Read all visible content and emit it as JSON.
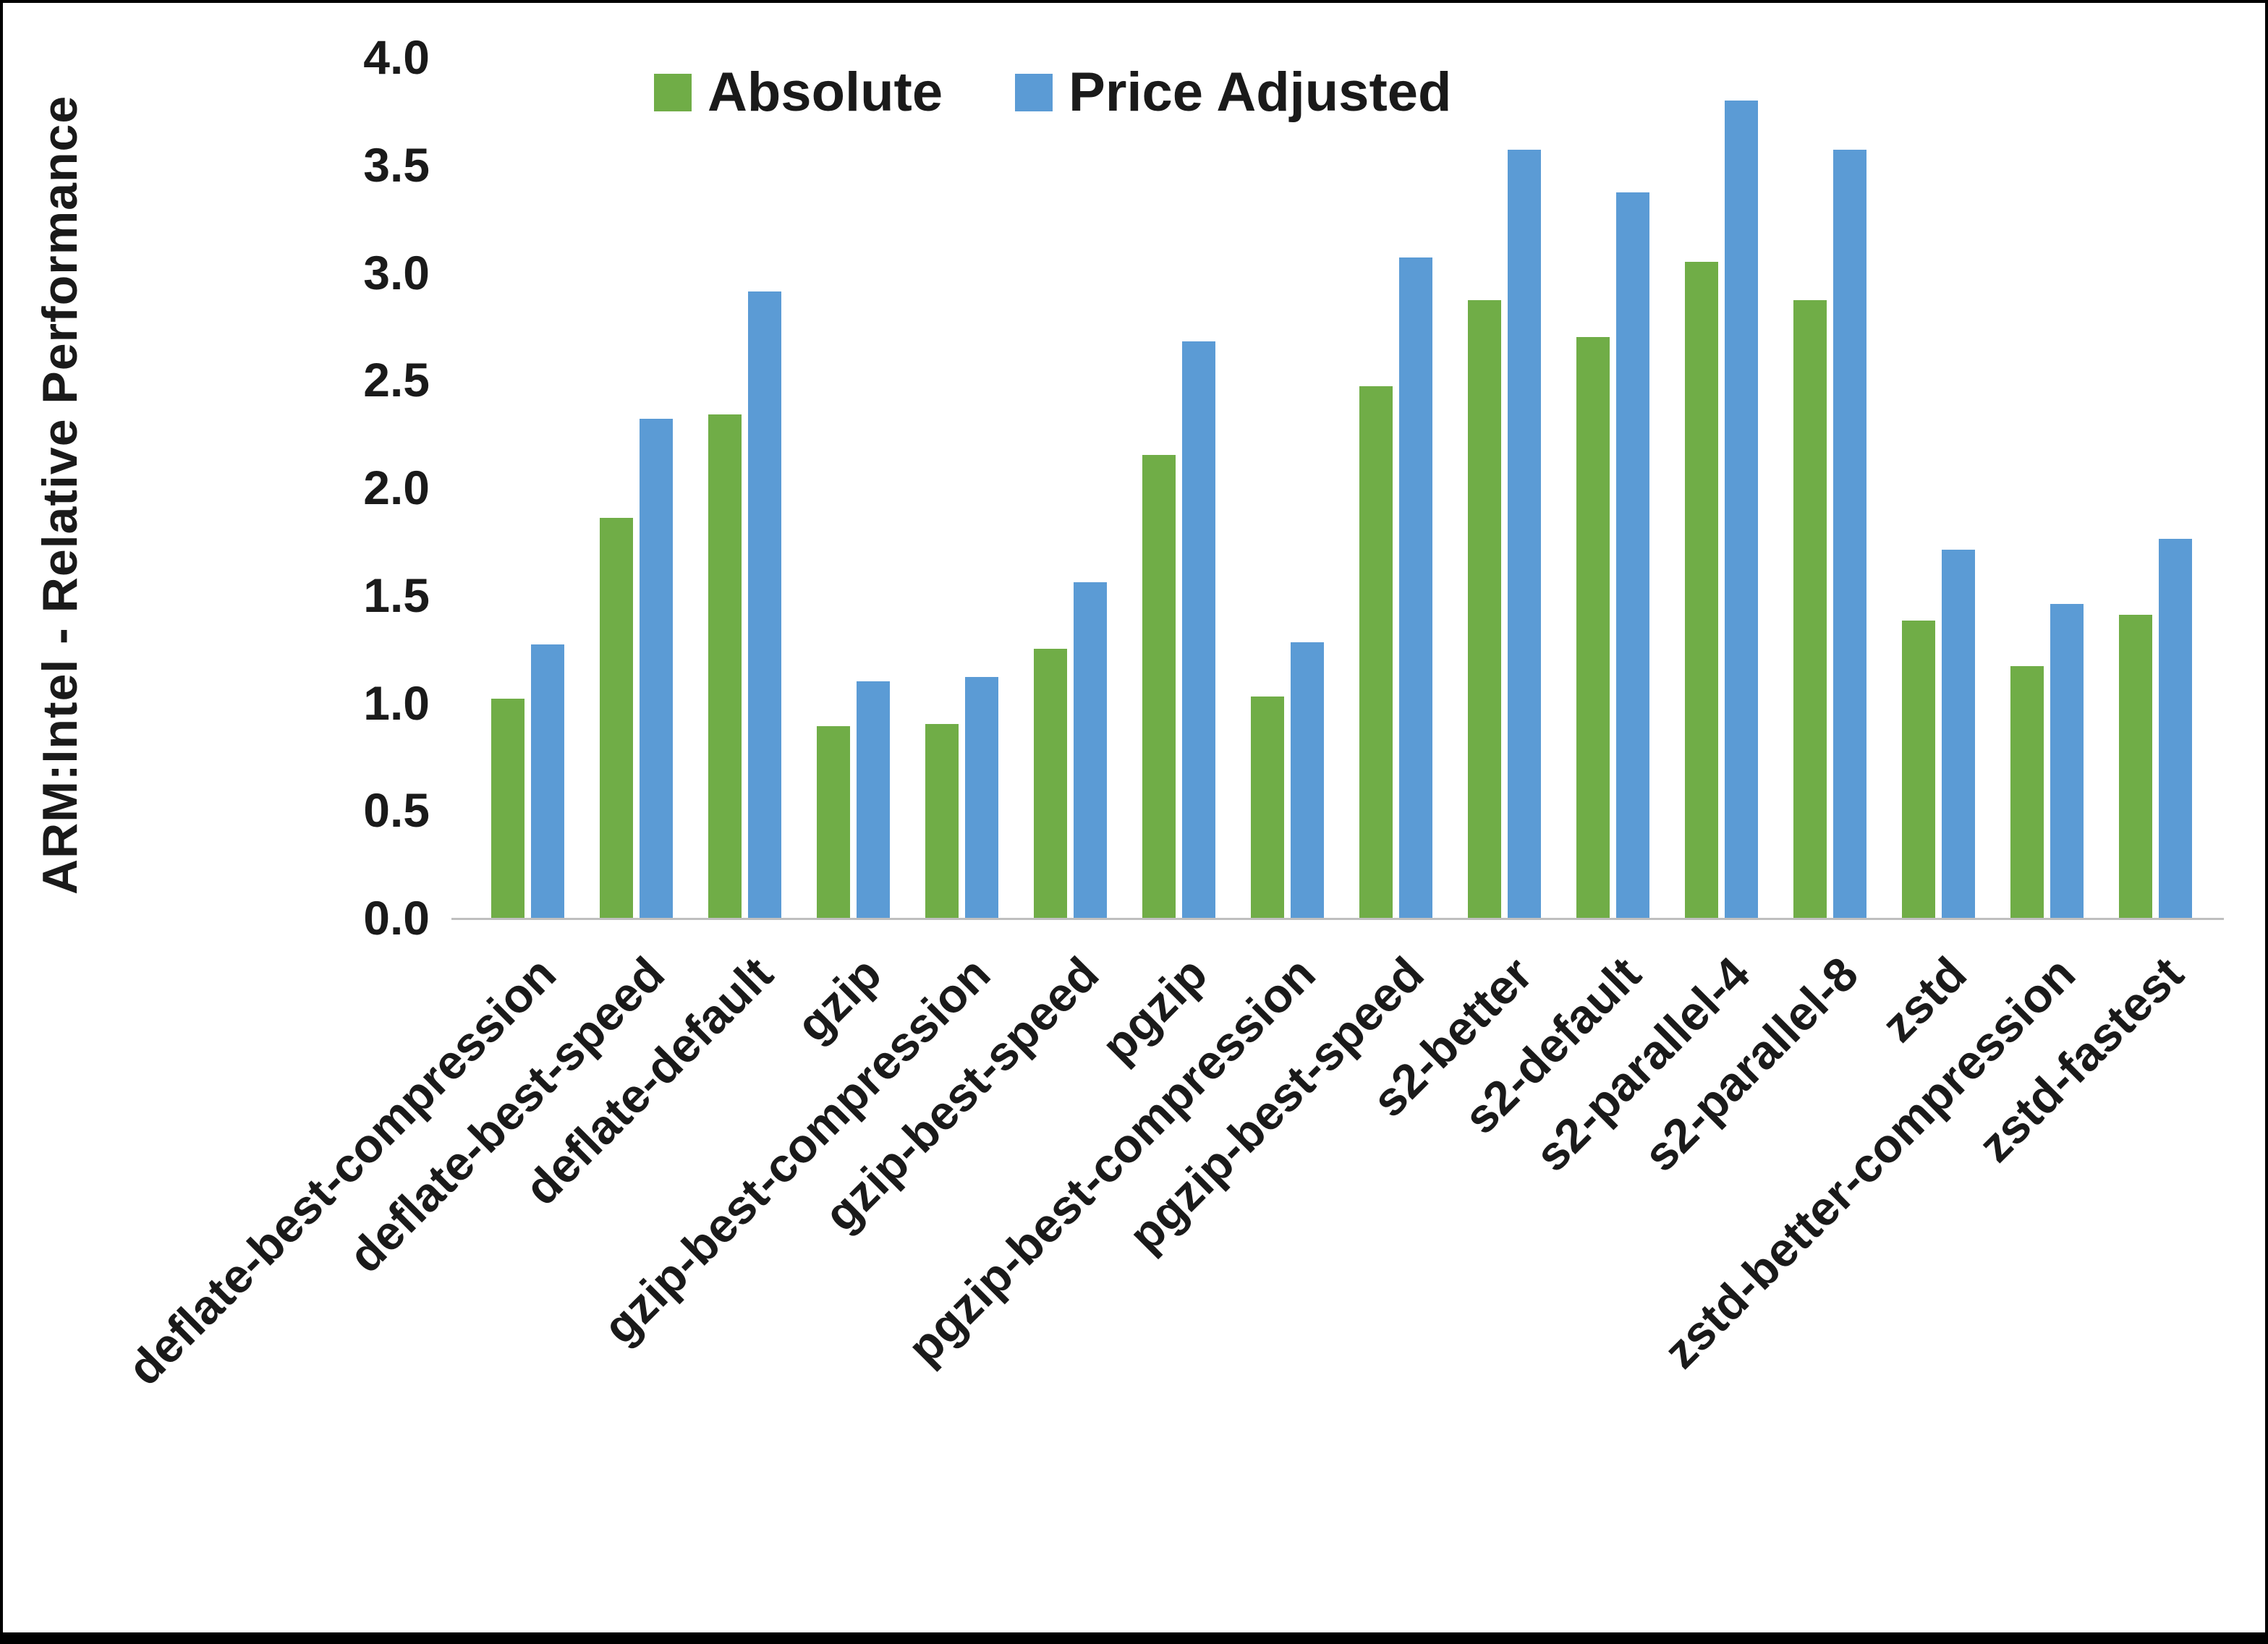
{
  "chart_data": {
    "type": "bar",
    "title": "",
    "xlabel": "",
    "ylabel": "ARM:Intel - Relative Performance",
    "ylim": [
      0,
      4.0
    ],
    "ytick_step": 0.5,
    "yticks": [
      "0.0",
      "0.5",
      "1.0",
      "1.5",
      "2.0",
      "2.5",
      "3.0",
      "3.5",
      "4.0"
    ],
    "grid": false,
    "legend_position": "top-center",
    "categories": [
      "deflate-best-compression",
      "deflate-best-speed",
      "deflate-default",
      "gzip",
      "gzip-best-compression",
      "gzip-best-speed",
      "pgzip",
      "pgzip-best-compression",
      "pgzip-best-speed",
      "s2-better",
      "s2-default",
      "s2-parallel-4",
      "s2-parallel-8",
      "zstd",
      "zstd-better-compression",
      "zstd-fastest"
    ],
    "series": [
      {
        "name": "Absolute",
        "color": "#70AD47",
        "values": [
          1.02,
          1.86,
          2.34,
          0.89,
          0.9,
          1.25,
          2.15,
          1.03,
          2.47,
          2.87,
          2.7,
          3.05,
          2.87,
          1.38,
          1.17,
          1.41
        ]
      },
      {
        "name": "Price Adjusted",
        "color": "#5B9BD5",
        "values": [
          1.27,
          2.32,
          2.91,
          1.1,
          1.12,
          1.56,
          2.68,
          1.28,
          3.07,
          3.57,
          3.37,
          3.8,
          3.57,
          1.71,
          1.46,
          1.76
        ]
      }
    ]
  }
}
